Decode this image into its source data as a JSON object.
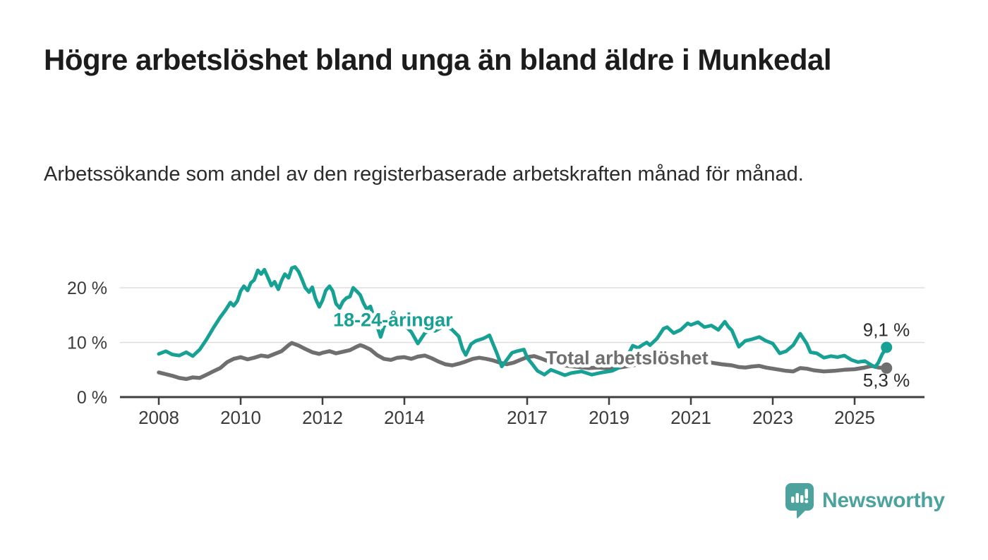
{
  "title": "Högre arbetslöshet bland unga än bland äldre i Munkedal",
  "subtitle": "Arbetssökande som andel av den registerbaserade arbetskraften månad för månad.",
  "branding": {
    "logo_text": "Newsworthy",
    "logo_icon": "newsworthy-bubble-barchart-icon",
    "logo_color": "#4CA39D"
  },
  "colors": {
    "young_series": "#16A194",
    "total_series": "#6F6F6F",
    "axis_text": "#3b3b3b",
    "grid": "#e0dedd",
    "axis_line": "#3f3f3f",
    "value_label_text": "#2d2d2d"
  },
  "chart_data": {
    "type": "line",
    "grid": true,
    "legend_position": "inline-labels",
    "x_tick_labels": [
      "2008",
      "2010",
      "2012",
      "2014",
      "2017",
      "2019",
      "2021",
      "2023",
      "2025"
    ],
    "x_tick_years": [
      2008,
      2010,
      2012,
      2014,
      2017,
      2019,
      2021,
      2023,
      2025
    ],
    "y_ticks": [
      {
        "value": 0,
        "label": "0 %"
      },
      {
        "value": 10,
        "label": "10 %"
      },
      {
        "value": 20,
        "label": "20 %"
      }
    ],
    "xlim": [
      2007.0,
      2026.7
    ],
    "ylim": [
      0,
      27.5
    ],
    "ylabel": "",
    "xlabel": "",
    "series": [
      {
        "name": "Total arbetslöshet",
        "color": "#6F6F6F",
        "end_label": "5,3 %",
        "end_value": 5.3,
        "label_anchor": {
          "x": 2017.45,
          "y": 6.0
        },
        "points": [
          [
            2008.0,
            4.5
          ],
          [
            2008.17,
            4.2
          ],
          [
            2008.33,
            3.9
          ],
          [
            2008.5,
            3.5
          ],
          [
            2008.67,
            3.3
          ],
          [
            2008.83,
            3.6
          ],
          [
            2009.0,
            3.5
          ],
          [
            2009.17,
            4.1
          ],
          [
            2009.33,
            4.7
          ],
          [
            2009.5,
            5.3
          ],
          [
            2009.67,
            6.4
          ],
          [
            2009.83,
            7.0
          ],
          [
            2010.0,
            7.3
          ],
          [
            2010.17,
            6.9
          ],
          [
            2010.33,
            7.2
          ],
          [
            2010.5,
            7.6
          ],
          [
            2010.67,
            7.4
          ],
          [
            2010.83,
            7.9
          ],
          [
            2011.0,
            8.4
          ],
          [
            2011.08,
            8.9
          ],
          [
            2011.17,
            9.5
          ],
          [
            2011.25,
            9.9
          ],
          [
            2011.42,
            9.4
          ],
          [
            2011.58,
            8.8
          ],
          [
            2011.75,
            8.2
          ],
          [
            2011.92,
            7.9
          ],
          [
            2012.0,
            8.1
          ],
          [
            2012.17,
            8.4
          ],
          [
            2012.33,
            8.0
          ],
          [
            2012.5,
            8.3
          ],
          [
            2012.67,
            8.6
          ],
          [
            2012.83,
            9.2
          ],
          [
            2012.92,
            9.5
          ],
          [
            2013.0,
            9.3
          ],
          [
            2013.17,
            8.7
          ],
          [
            2013.33,
            7.7
          ],
          [
            2013.5,
            7.0
          ],
          [
            2013.67,
            6.8
          ],
          [
            2013.83,
            7.2
          ],
          [
            2014.0,
            7.3
          ],
          [
            2014.17,
            7.0
          ],
          [
            2014.33,
            7.4
          ],
          [
            2014.5,
            7.6
          ],
          [
            2014.67,
            7.1
          ],
          [
            2014.83,
            6.5
          ],
          [
            2015.0,
            6.0
          ],
          [
            2015.17,
            5.8
          ],
          [
            2015.33,
            6.1
          ],
          [
            2015.5,
            6.5
          ],
          [
            2015.67,
            7.0
          ],
          [
            2015.83,
            7.2
          ],
          [
            2016.0,
            7.0
          ],
          [
            2016.17,
            6.7
          ],
          [
            2016.33,
            6.3
          ],
          [
            2016.5,
            6.0
          ],
          [
            2016.67,
            6.3
          ],
          [
            2016.83,
            6.8
          ],
          [
            2017.0,
            7.3
          ],
          [
            2017.17,
            7.5
          ],
          [
            2017.33,
            7.1
          ],
          [
            2017.5,
            6.6
          ],
          [
            2017.67,
            6.2
          ],
          [
            2017.83,
            5.9
          ],
          [
            2018.0,
            5.7
          ],
          [
            2018.25,
            5.5
          ],
          [
            2018.5,
            5.3
          ],
          [
            2018.75,
            5.4
          ],
          [
            2019.0,
            5.2
          ],
          [
            2019.25,
            5.4
          ],
          [
            2019.5,
            5.7
          ],
          [
            2019.75,
            6.0
          ],
          [
            2020.0,
            6.3
          ],
          [
            2020.25,
            6.8
          ],
          [
            2020.5,
            7.1
          ],
          [
            2020.75,
            7.0
          ],
          [
            2021.0,
            6.8
          ],
          [
            2021.25,
            6.5
          ],
          [
            2021.5,
            6.3
          ],
          [
            2021.75,
            6.0
          ],
          [
            2022.0,
            5.8
          ],
          [
            2022.17,
            5.5
          ],
          [
            2022.33,
            5.4
          ],
          [
            2022.5,
            5.6
          ],
          [
            2022.67,
            5.7
          ],
          [
            2022.83,
            5.4
          ],
          [
            2023.0,
            5.2
          ],
          [
            2023.17,
            5.0
          ],
          [
            2023.33,
            4.8
          ],
          [
            2023.5,
            4.7
          ],
          [
            2023.67,
            5.3
          ],
          [
            2023.83,
            5.2
          ],
          [
            2024.0,
            4.9
          ],
          [
            2024.25,
            4.7
          ],
          [
            2024.5,
            4.8
          ],
          [
            2024.75,
            5.0
          ],
          [
            2025.0,
            5.1
          ],
          [
            2025.25,
            5.4
          ],
          [
            2025.42,
            5.7
          ],
          [
            2025.58,
            5.4
          ],
          [
            2025.78,
            5.3
          ]
        ]
      },
      {
        "name": "18-24-åringar",
        "color": "#16A194",
        "end_label": "9,1 %",
        "end_value": 9.1,
        "label_anchor": {
          "x": 2012.26,
          "y": 13.0
        },
        "points": [
          [
            2008.0,
            7.9
          ],
          [
            2008.17,
            8.4
          ],
          [
            2008.33,
            7.8
          ],
          [
            2008.5,
            7.6
          ],
          [
            2008.67,
            8.2
          ],
          [
            2008.83,
            7.5
          ],
          [
            2009.0,
            8.7
          ],
          [
            2009.17,
            10.6
          ],
          [
            2009.33,
            12.6
          ],
          [
            2009.5,
            14.6
          ],
          [
            2009.63,
            15.9
          ],
          [
            2009.75,
            17.3
          ],
          [
            2009.83,
            16.7
          ],
          [
            2009.92,
            17.6
          ],
          [
            2010.0,
            19.4
          ],
          [
            2010.08,
            20.3
          ],
          [
            2010.17,
            19.5
          ],
          [
            2010.25,
            20.9
          ],
          [
            2010.33,
            21.4
          ],
          [
            2010.42,
            23.2
          ],
          [
            2010.5,
            22.5
          ],
          [
            2010.58,
            23.3
          ],
          [
            2010.67,
            21.8
          ],
          [
            2010.75,
            20.4
          ],
          [
            2010.83,
            21.1
          ],
          [
            2010.92,
            19.7
          ],
          [
            2011.0,
            21.3
          ],
          [
            2011.08,
            22.5
          ],
          [
            2011.17,
            21.8
          ],
          [
            2011.25,
            23.6
          ],
          [
            2011.33,
            23.8
          ],
          [
            2011.42,
            22.9
          ],
          [
            2011.5,
            21.5
          ],
          [
            2011.58,
            20.0
          ],
          [
            2011.67,
            19.2
          ],
          [
            2011.75,
            20.1
          ],
          [
            2011.83,
            18.0
          ],
          [
            2011.92,
            16.5
          ],
          [
            2012.0,
            17.7
          ],
          [
            2012.08,
            19.5
          ],
          [
            2012.17,
            20.3
          ],
          [
            2012.25,
            19.4
          ],
          [
            2012.33,
            17.1
          ],
          [
            2012.42,
            16.3
          ],
          [
            2012.5,
            17.5
          ],
          [
            2012.58,
            18.1
          ],
          [
            2012.67,
            18.4
          ],
          [
            2012.75,
            20.0
          ],
          [
            2012.83,
            19.4
          ],
          [
            2012.92,
            18.7
          ],
          [
            2013.0,
            17.2
          ],
          [
            2013.08,
            16.1
          ],
          [
            2013.17,
            16.6
          ],
          [
            2013.25,
            14.7
          ],
          [
            2013.33,
            13.1
          ],
          [
            2013.42,
            11.0
          ],
          [
            2013.5,
            12.9
          ],
          [
            2013.58,
            13.5
          ],
          [
            2013.67,
            13.0
          ],
          [
            2013.75,
            13.7
          ],
          [
            2013.83,
            13.1
          ],
          [
            2013.92,
            13.6
          ],
          [
            2014.0,
            13.2
          ],
          [
            2014.17,
            11.9
          ],
          [
            2014.33,
            9.8
          ],
          [
            2014.5,
            11.7
          ],
          [
            2014.63,
            12.3
          ],
          [
            2014.75,
            12.1
          ],
          [
            2014.92,
            12.8
          ],
          [
            2015.0,
            13.2
          ],
          [
            2015.17,
            12.3
          ],
          [
            2015.33,
            11.1
          ],
          [
            2015.42,
            8.8
          ],
          [
            2015.5,
            7.7
          ],
          [
            2015.63,
            9.7
          ],
          [
            2015.75,
            10.3
          ],
          [
            2015.92,
            10.7
          ],
          [
            2016.0,
            11.0
          ],
          [
            2016.08,
            11.3
          ],
          [
            2016.25,
            8.2
          ],
          [
            2016.38,
            5.6
          ],
          [
            2016.5,
            6.8
          ],
          [
            2016.63,
            8.1
          ],
          [
            2016.75,
            8.4
          ],
          [
            2016.92,
            8.7
          ],
          [
            2017.0,
            7.2
          ],
          [
            2017.13,
            6.0
          ],
          [
            2017.25,
            4.8
          ],
          [
            2017.42,
            4.1
          ],
          [
            2017.58,
            5.0
          ],
          [
            2017.75,
            4.5
          ],
          [
            2017.92,
            4.0
          ],
          [
            2018.08,
            4.4
          ],
          [
            2018.33,
            4.7
          ],
          [
            2018.58,
            4.1
          ],
          [
            2018.83,
            4.5
          ],
          [
            2019.08,
            4.8
          ],
          [
            2019.25,
            5.4
          ],
          [
            2019.42,
            7.1
          ],
          [
            2019.58,
            9.4
          ],
          [
            2019.71,
            9.0
          ],
          [
            2019.83,
            9.6
          ],
          [
            2019.92,
            10.0
          ],
          [
            2020.0,
            9.5
          ],
          [
            2020.17,
            10.7
          ],
          [
            2020.33,
            12.5
          ],
          [
            2020.42,
            12.8
          ],
          [
            2020.58,
            11.7
          ],
          [
            2020.75,
            12.3
          ],
          [
            2020.92,
            13.5
          ],
          [
            2021.0,
            13.2
          ],
          [
            2021.17,
            13.7
          ],
          [
            2021.33,
            12.8
          ],
          [
            2021.5,
            13.1
          ],
          [
            2021.67,
            12.3
          ],
          [
            2021.83,
            13.8
          ],
          [
            2021.92,
            12.8
          ],
          [
            2022.0,
            12.2
          ],
          [
            2022.17,
            9.2
          ],
          [
            2022.33,
            10.3
          ],
          [
            2022.5,
            10.6
          ],
          [
            2022.67,
            11.0
          ],
          [
            2022.83,
            10.3
          ],
          [
            2023.0,
            9.8
          ],
          [
            2023.17,
            8.0
          ],
          [
            2023.33,
            8.4
          ],
          [
            2023.5,
            9.5
          ],
          [
            2023.67,
            11.6
          ],
          [
            2023.83,
            9.8
          ],
          [
            2023.92,
            8.2
          ],
          [
            2024.08,
            8.0
          ],
          [
            2024.25,
            7.2
          ],
          [
            2024.42,
            7.5
          ],
          [
            2024.58,
            7.3
          ],
          [
            2024.75,
            7.6
          ],
          [
            2024.92,
            6.8
          ],
          [
            2025.08,
            6.4
          ],
          [
            2025.25,
            6.6
          ],
          [
            2025.42,
            5.8
          ],
          [
            2025.5,
            5.5
          ],
          [
            2025.58,
            6.3
          ],
          [
            2025.67,
            7.8
          ],
          [
            2025.78,
            9.1
          ]
        ]
      }
    ]
  }
}
